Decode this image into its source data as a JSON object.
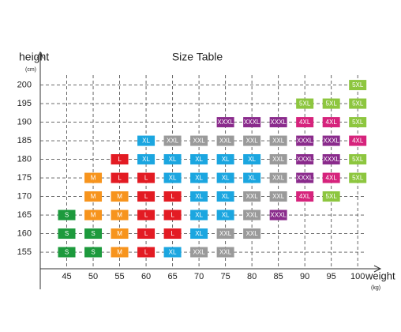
{
  "chart_data": {
    "type": "size-grid",
    "title": "Size Table",
    "y_label": "height",
    "y_unit": "(cm)",
    "x_label": "weight",
    "x_unit": "(kg)",
    "xlim": [
      40,
      104
    ],
    "ylim": [
      145,
      208
    ],
    "xticks": [
      45,
      50,
      55,
      60,
      65,
      70,
      75,
      80,
      85,
      90,
      95,
      100
    ],
    "yticks": [
      155,
      160,
      165,
      170,
      175,
      180,
      185,
      190,
      195,
      200
    ],
    "grid": true,
    "colors": {
      "S": "#1d9a3d",
      "M": "#f7941d",
      "L": "#e31b23",
      "XL": "#1ba6e0",
      "XXL": "#9a9a9a",
      "XXXL": "#8a2b8c",
      "4XL": "#d6237c",
      "5XL": "#8dc63f"
    },
    "cells": [
      {
        "x": 100,
        "y": 200,
        "label": "5XL"
      },
      {
        "x": 90,
        "y": 195,
        "label": "5XL"
      },
      {
        "x": 95,
        "y": 195,
        "label": "5XL"
      },
      {
        "x": 100,
        "y": 195,
        "label": "5XL"
      },
      {
        "x": 75,
        "y": 190,
        "label": "XXXL"
      },
      {
        "x": 80,
        "y": 190,
        "label": "XXXL"
      },
      {
        "x": 85,
        "y": 190,
        "label": "XXXL"
      },
      {
        "x": 90,
        "y": 190,
        "label": "4XL"
      },
      {
        "x": 95,
        "y": 190,
        "label": "4XL"
      },
      {
        "x": 100,
        "y": 190,
        "label": "5XL"
      },
      {
        "x": 60,
        "y": 185,
        "label": "XL"
      },
      {
        "x": 65,
        "y": 185,
        "label": "XXL"
      },
      {
        "x": 70,
        "y": 185,
        "label": "XXL"
      },
      {
        "x": 75,
        "y": 185,
        "label": "XXL"
      },
      {
        "x": 80,
        "y": 185,
        "label": "XXL"
      },
      {
        "x": 85,
        "y": 185,
        "label": "XXL"
      },
      {
        "x": 90,
        "y": 185,
        "label": "XXXL"
      },
      {
        "x": 95,
        "y": 185,
        "label": "XXXL"
      },
      {
        "x": 100,
        "y": 185,
        "label": "4XL"
      },
      {
        "x": 55,
        "y": 180,
        "label": "L"
      },
      {
        "x": 60,
        "y": 180,
        "label": "XL"
      },
      {
        "x": 65,
        "y": 180,
        "label": "XL"
      },
      {
        "x": 70,
        "y": 180,
        "label": "XL"
      },
      {
        "x": 75,
        "y": 180,
        "label": "XL"
      },
      {
        "x": 80,
        "y": 180,
        "label": "XL"
      },
      {
        "x": 85,
        "y": 180,
        "label": "XXL"
      },
      {
        "x": 90,
        "y": 180,
        "label": "XXXL"
      },
      {
        "x": 95,
        "y": 180,
        "label": "XXXL"
      },
      {
        "x": 100,
        "y": 180,
        "label": "5XL"
      },
      {
        "x": 50,
        "y": 175,
        "label": "M"
      },
      {
        "x": 55,
        "y": 175,
        "label": "L"
      },
      {
        "x": 60,
        "y": 175,
        "label": "L"
      },
      {
        "x": 65,
        "y": 175,
        "label": "XL"
      },
      {
        "x": 70,
        "y": 175,
        "label": "XL"
      },
      {
        "x": 75,
        "y": 175,
        "label": "XL"
      },
      {
        "x": 80,
        "y": 175,
        "label": "XL"
      },
      {
        "x": 85,
        "y": 175,
        "label": "XXL"
      },
      {
        "x": 90,
        "y": 175,
        "label": "XXXL"
      },
      {
        "x": 95,
        "y": 175,
        "label": "4XL"
      },
      {
        "x": 100,
        "y": 175,
        "label": "5XL"
      },
      {
        "x": 50,
        "y": 170,
        "label": "M"
      },
      {
        "x": 55,
        "y": 170,
        "label": "M"
      },
      {
        "x": 60,
        "y": 170,
        "label": "L"
      },
      {
        "x": 65,
        "y": 170,
        "label": "L"
      },
      {
        "x": 70,
        "y": 170,
        "label": "XL"
      },
      {
        "x": 75,
        "y": 170,
        "label": "XL"
      },
      {
        "x": 80,
        "y": 170,
        "label": "XXL"
      },
      {
        "x": 85,
        "y": 170,
        "label": "XXL"
      },
      {
        "x": 90,
        "y": 170,
        "label": "4XL"
      },
      {
        "x": 95,
        "y": 170,
        "label": "5XL"
      },
      {
        "x": 45,
        "y": 165,
        "label": "S"
      },
      {
        "x": 50,
        "y": 165,
        "label": "M"
      },
      {
        "x": 55,
        "y": 165,
        "label": "M"
      },
      {
        "x": 60,
        "y": 165,
        "label": "L"
      },
      {
        "x": 65,
        "y": 165,
        "label": "L"
      },
      {
        "x": 70,
        "y": 165,
        "label": "XL"
      },
      {
        "x": 75,
        "y": 165,
        "label": "XL"
      },
      {
        "x": 80,
        "y": 165,
        "label": "XXL"
      },
      {
        "x": 85,
        "y": 165,
        "label": "XXXL"
      },
      {
        "x": 45,
        "y": 160,
        "label": "S"
      },
      {
        "x": 50,
        "y": 160,
        "label": "S"
      },
      {
        "x": 55,
        "y": 160,
        "label": "M"
      },
      {
        "x": 60,
        "y": 160,
        "label": "L"
      },
      {
        "x": 65,
        "y": 160,
        "label": "L"
      },
      {
        "x": 70,
        "y": 160,
        "label": "XL"
      },
      {
        "x": 75,
        "y": 160,
        "label": "XXL"
      },
      {
        "x": 80,
        "y": 160,
        "label": "XXL"
      },
      {
        "x": 45,
        "y": 155,
        "label": "S"
      },
      {
        "x": 50,
        "y": 155,
        "label": "S"
      },
      {
        "x": 55,
        "y": 155,
        "label": "M"
      },
      {
        "x": 60,
        "y": 155,
        "label": "L"
      },
      {
        "x": 65,
        "y": 155,
        "label": "XL"
      },
      {
        "x": 70,
        "y": 155,
        "label": "XXL"
      },
      {
        "x": 75,
        "y": 155,
        "label": "XXL"
      }
    ]
  }
}
